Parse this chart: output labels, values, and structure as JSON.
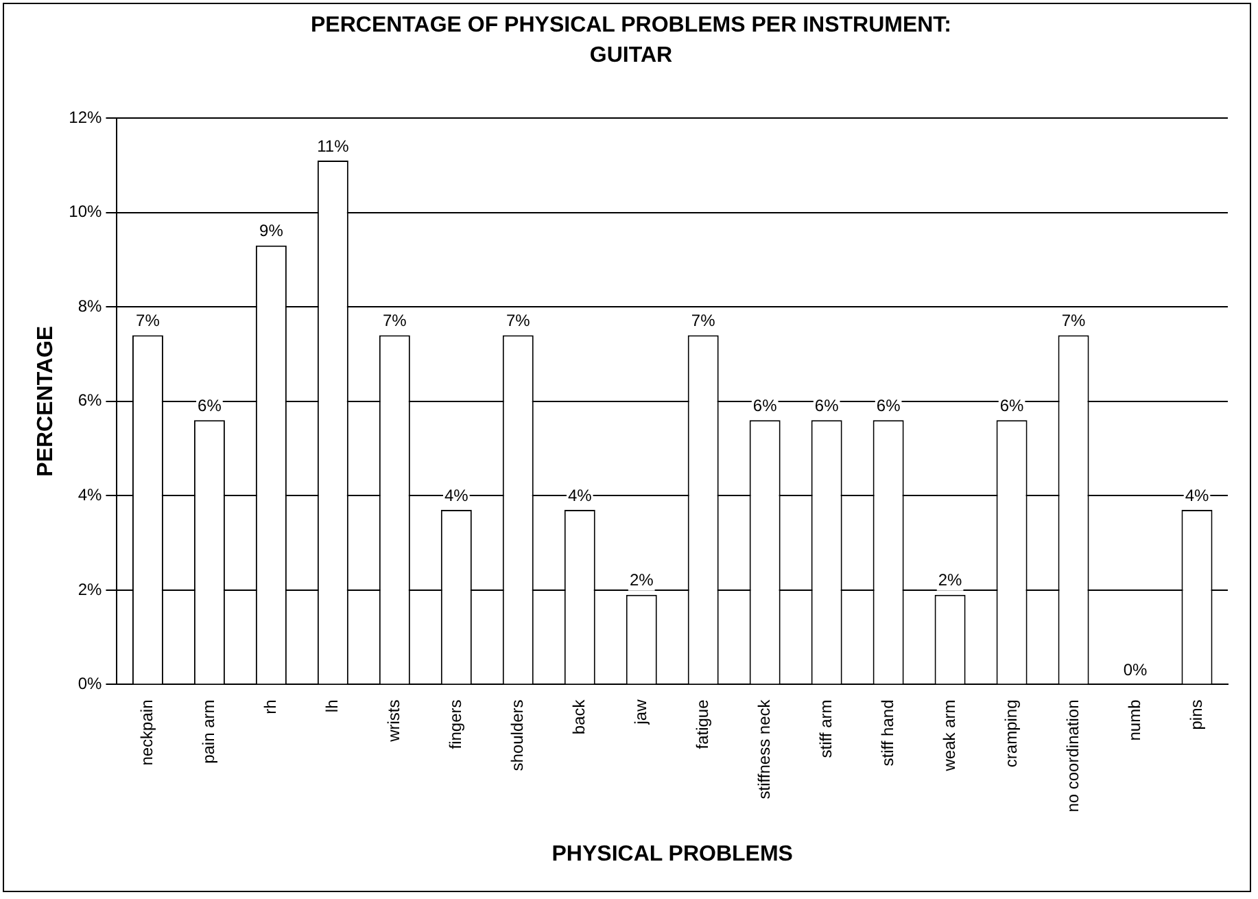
{
  "chart_data": {
    "type": "bar",
    "title": "PERCENTAGE OF PHYSICAL PROBLEMS PER INSTRUMENT: GUITAR",
    "xlabel": "PHYSICAL PROBLEMS",
    "ylabel": "PERCENTAGE",
    "categories": [
      "neckpain",
      "pain arm",
      "rh",
      "lh",
      "wrists",
      "fingers",
      "shoulders",
      "back",
      "jaw",
      "fatigue",
      "stiffness neck",
      "stiff arm",
      "stiff hand",
      "weak arm",
      "cramping",
      "no coordination",
      "numb",
      "pins"
    ],
    "values": [
      7.4,
      5.6,
      9.3,
      11.1,
      7.4,
      3.7,
      7.4,
      3.7,
      1.9,
      7.4,
      5.6,
      5.6,
      5.6,
      1.9,
      5.6,
      7.4,
      0,
      3.7
    ],
    "value_labels": [
      "7%",
      "6%",
      "9%",
      "11%",
      "7%",
      "4%",
      "7%",
      "4%",
      "2%",
      "7%",
      "6%",
      "6%",
      "6%",
      "2%",
      "6%",
      "7%",
      "0%",
      "4%"
    ],
    "color": "#ffffff",
    "ylim": [
      0,
      12
    ],
    "yticks": [
      {
        "value": 0,
        "label": "0%"
      },
      {
        "value": 2,
        "label": "2%"
      },
      {
        "value": 4,
        "label": "4%"
      },
      {
        "value": 6,
        "label": "6%"
      },
      {
        "value": 8,
        "label": "8%"
      },
      {
        "value": 10,
        "label": "10%"
      },
      {
        "value": 12,
        "label": "12%"
      }
    ],
    "grid": "y",
    "legend": false
  }
}
